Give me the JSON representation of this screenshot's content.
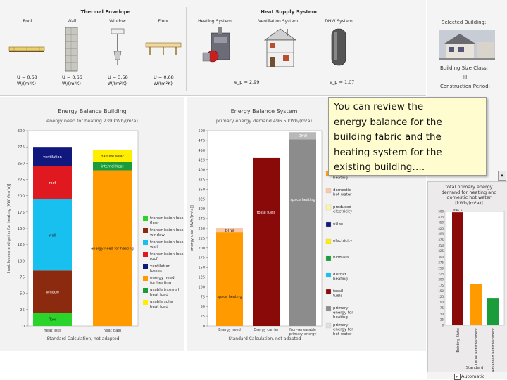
{
  "top": {
    "thermal_envelope_title": "Thermal Envelope",
    "heat_supply_title": "Heat Supply System",
    "components": [
      "Roof",
      "Wall",
      "Window",
      "Floor",
      "Heating System",
      "Ventilation System",
      "DHW System"
    ],
    "u_values": [
      {
        "u": "U = 0.68",
        "unit": "W/(m²K)"
      },
      {
        "u": "U = 0.66",
        "unit": "W/(m²K)"
      },
      {
        "u": "U = 3.58",
        "unit": "W/(m²K)"
      },
      {
        "u": "U = 0.68",
        "unit": "W/(m²K)"
      }
    ],
    "heating_ep": "e_p = 2.99",
    "dhw_ep": "e_p = 1.07"
  },
  "sidebar": {
    "selected_building_label": "Selected Building:",
    "size_class_label": "Building Size Class:",
    "size_class_value": "III",
    "construction_label": "Construction Period:",
    "mini_chart_title": "total primary energy demand for heating and domestic hot water [kWh/(m²a)]",
    "mini_top_value": "496.5",
    "mini_xlabel": "Standard",
    "automatic_label": "Automatic"
  },
  "callout": {
    "lines": [
      "You can review the",
      "energy balance for the",
      "building fabric and the",
      "heating system for the",
      "existing building…."
    ]
  },
  "colors": {
    "ventilation": "#10187e",
    "roof": "#e01820",
    "wall": "#18c0f0",
    "window": "#8c2a10",
    "floor": "#2ad42a",
    "heat_need": "#ff9a00",
    "passive_solar": "#ffee00",
    "internal_heat": "#1a9c3a",
    "fossil_fuels": "#8a0a0a",
    "non_renewable": "#8c8c8c",
    "dhw": "#f8c8a8"
  },
  "chart_building": {
    "title": "Energy Balance Building",
    "subtitle": "energy need for heating 239 kWh/(m²a)",
    "ylabel": "heat losses and gains for heating [kWh/(m²a)]",
    "xlabel": "Standard Calculation, not adapted",
    "categories": [
      "heat loss",
      "heat gain"
    ],
    "y_ticks": [
      "0",
      "25",
      "50",
      "75",
      "100",
      "125",
      "150",
      "175",
      "200",
      "225",
      "250",
      "275",
      "300"
    ],
    "ylim": [
      0,
      300
    ],
    "loss_stack": [
      {
        "name": "floor",
        "value": 20,
        "label": "floor"
      },
      {
        "name": "window",
        "value": 65,
        "label": "window"
      },
      {
        "name": "wall",
        "value": 110,
        "label": "wall"
      },
      {
        "name": "roof",
        "value": 50,
        "label": "roof"
      },
      {
        "name": "ventilation",
        "value": 30,
        "label": "ventilation"
      }
    ],
    "gain_stack": [
      {
        "name": "heat_need",
        "value": 239,
        "label": "energy need for heating"
      },
      {
        "name": "internal_heat",
        "value": 13,
        "label": "internal heat"
      },
      {
        "name": "passive_solar",
        "value": 18,
        "label": "passive solar"
      }
    ],
    "legend": [
      {
        "key": "floor",
        "label": "transmission losses floor"
      },
      {
        "key": "window",
        "label": "transmission losses window"
      },
      {
        "key": "wall",
        "label": "transmission losses wall"
      },
      {
        "key": "roof",
        "label": "transmission losses roof"
      },
      {
        "key": "ventilation",
        "label": "ventilation losses"
      },
      {
        "key": "heat_need",
        "label": "energy need for heating"
      },
      {
        "key": "internal_heat",
        "label": "usable internal heat load"
      },
      {
        "key": "passive_solar",
        "label": "usable solar heat load"
      }
    ]
  },
  "chart_system": {
    "title": "Energy Balance System",
    "subtitle": "primary energy demand 496.5 kWh/(m²a)",
    "ylabel": "energy use [kWh/(m²a)]",
    "xlabel": "Standard Calculation, not adapted",
    "categories": [
      "Energy need",
      "Energy carrier",
      "Non-renewable primary energy"
    ],
    "y_ticks": [
      "0",
      "25",
      "50",
      "75",
      "100",
      "125",
      "150",
      "175",
      "200",
      "225",
      "250",
      "275",
      "300",
      "325",
      "350",
      "375",
      "400",
      "425",
      "450",
      "475",
      "500"
    ],
    "ylim": [
      0,
      500
    ],
    "bars": [
      {
        "segments": [
          {
            "key": "heat_need",
            "value": 239,
            "label": "space heating"
          },
          {
            "key": "dhw",
            "value": 11,
            "label": "DHW"
          }
        ]
      },
      {
        "segments": [
          {
            "key": "fossil_fuels",
            "value": 430,
            "label": "fossil fuels"
          }
        ]
      },
      {
        "segments": [
          {
            "key": "non_renewable",
            "value": 478,
            "label": "space heating"
          },
          {
            "key": "non_renewable",
            "value": 18,
            "label": "DHW"
          }
        ]
      }
    ],
    "legend": [
      {
        "key": "heat_need",
        "label": "space heating"
      },
      {
        "key": "dhw",
        "label": "domestic hot water"
      },
      {
        "key": "passive_solar",
        "label": "produced electricity"
      },
      {
        "key": "ventilation",
        "label": "other"
      },
      {
        "key": "passive_solar",
        "label": "electricity"
      },
      {
        "key": "internal_heat",
        "label": "biomass"
      },
      {
        "key": "wall",
        "label": "district heating"
      },
      {
        "key": "fossil_fuels",
        "label": "fossil fuels"
      },
      {
        "key": "non_renewable",
        "label": "primary energy for heating"
      },
      {
        "key": "dhw",
        "label": "primary energy for hot water"
      }
    ]
  },
  "mini_chart": {
    "y_ticks": [
      "0",
      "25",
      "50",
      "75",
      "100",
      "125",
      "150",
      "175",
      "200",
      "225",
      "250",
      "275",
      "300",
      "325",
      "350",
      "375",
      "400",
      "425",
      "450",
      "475",
      "500"
    ],
    "ylim": [
      0,
      500
    ],
    "bars": [
      {
        "value": 496.5,
        "color": "#8a0a0a",
        "label": "Existing State"
      },
      {
        "value": 180,
        "color": "#ff9a00",
        "label": "Usual Refurbishment"
      },
      {
        "value": 120,
        "color": "#1a9c3a",
        "label": "Advanced Refurbishment"
      }
    ]
  }
}
